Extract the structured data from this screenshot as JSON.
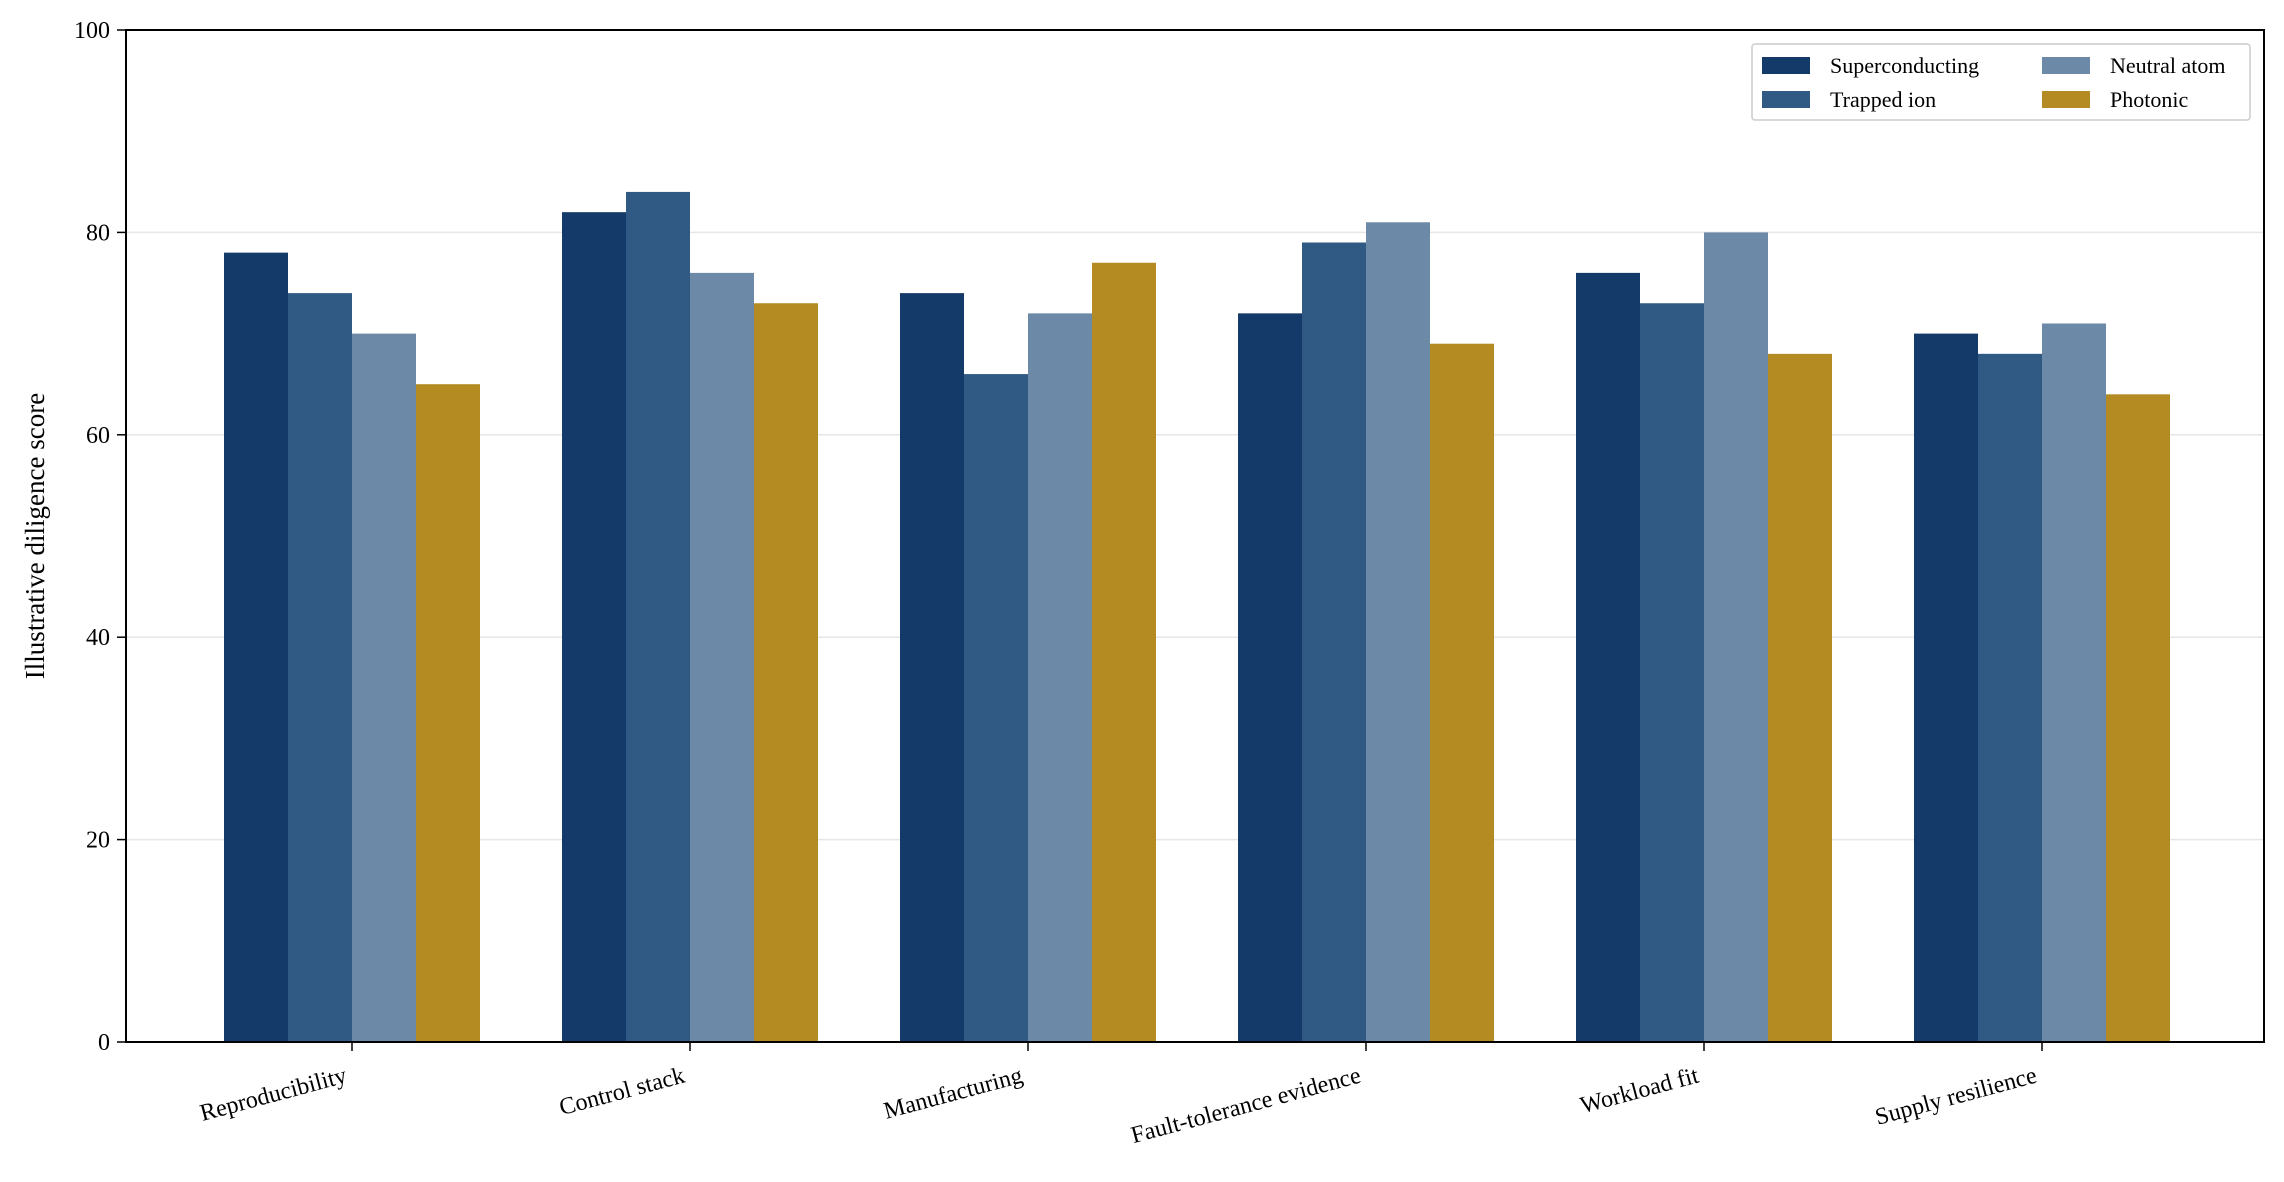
{
  "chart_data": {
    "type": "bar",
    "title": "",
    "xlabel": "",
    "ylabel": "Illustrative diligence score",
    "ylim": [
      0,
      100
    ],
    "yticks": [
      "0",
      "20",
      "40",
      "60",
      "80",
      "100"
    ],
    "grid": "horizontal",
    "legend_position": "top-right",
    "categories": [
      "Reproducibility",
      "Control stack",
      "Manufacturing",
      "Fault-tolerance evidence",
      "Workload fit",
      "Supply resilience"
    ],
    "series": [
      {
        "name": "Superconducting",
        "color": "#143a69",
        "values": [
          78,
          82,
          74,
          72,
          76,
          70
        ]
      },
      {
        "name": "Trapped ion",
        "color": "#305a83",
        "values": [
          74,
          84,
          66,
          79,
          73,
          68
        ]
      },
      {
        "name": "Neutral atom",
        "color": "#6c8aa8",
        "values": [
          70,
          76,
          72,
          81,
          80,
          71
        ]
      },
      {
        "name": "Photonic",
        "color": "#b38b22",
        "values": [
          65,
          73,
          77,
          69,
          68,
          64
        ]
      }
    ]
  }
}
